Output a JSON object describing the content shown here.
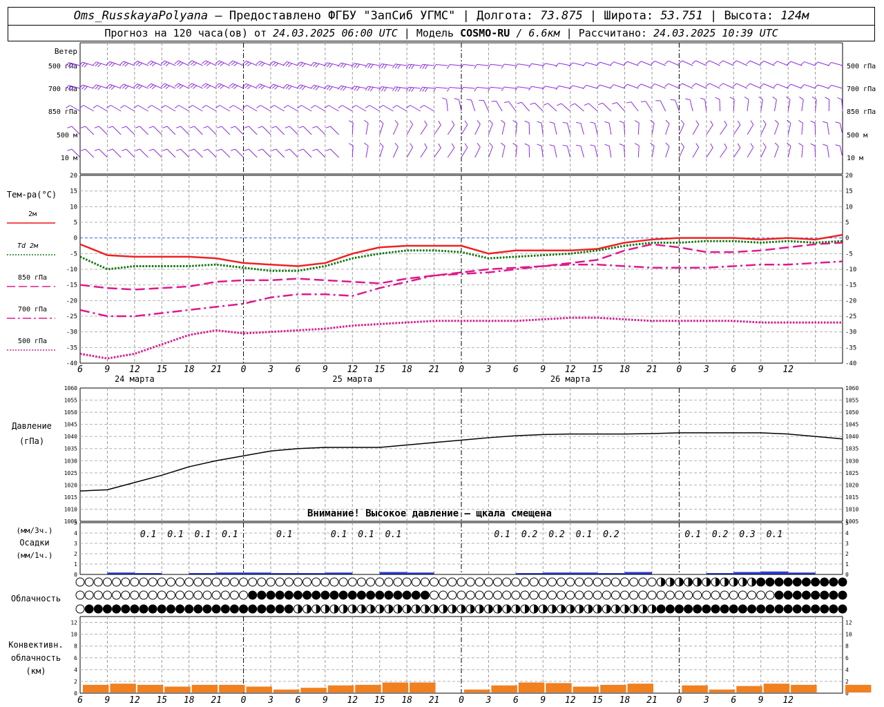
{
  "header": {
    "station": "Oms_RusskayaPolyana",
    "provided_label": "– Предоставлено ФГБУ \"ЗапСиб УГМС\"",
    "lon_label": "Долгота:",
    "lon_value": "73.875",
    "lat_label": "Широта:",
    "lat_value": "53.751",
    "alt_label": "Высота:",
    "alt_value": "124м",
    "forecast_label": "Прогноз на 120 часа(ов) от",
    "forecast_start": "24.03.2025 06:00 UTC",
    "model_label": "Модель",
    "model_name": "COSMO-RU",
    "model_res": "/ 6.6км",
    "calc_label": "Рассчитано:",
    "calc_time": "24.03.2025 10:39 UTC"
  },
  "time_axis": {
    "hour_labels": [
      "6",
      "9",
      "12",
      "15",
      "18",
      "21",
      "0",
      "3",
      "6",
      "9",
      "12",
      "15",
      "18",
      "21",
      "0",
      "3",
      "6",
      "9",
      "12",
      "15",
      "18",
      "21",
      "0",
      "3",
      "6",
      "9",
      "12"
    ],
    "day_labels": [
      "24 марта",
      "25 марта",
      "26 марта"
    ]
  },
  "wind": {
    "title": "Ветер",
    "levels": [
      "500 гПа",
      "700 гПа",
      "850 гПа",
      "500 м",
      "10  м"
    ],
    "color": "#8a2be2"
  },
  "temperature": {
    "title": "Тем-ра(°С)",
    "ticks": [
      "20",
      "15",
      "10",
      "5",
      "0",
      "-5",
      "-10",
      "-15",
      "-20",
      "-25",
      "-30",
      "-35",
      "-40"
    ],
    "legend": [
      {
        "label": "2м",
        "color": "#ee1111",
        "style": "solid"
      },
      {
        "label": "Td 2м",
        "color": "#117711",
        "style": "dotted"
      },
      {
        "label": "850 гПа",
        "color": "#e0188c",
        "style": "dashed"
      },
      {
        "label": "700 гПа",
        "color": "#e0188c",
        "style": "dashdot"
      },
      {
        "label": "500 гПа",
        "color": "#e0188c",
        "style": "dotted"
      }
    ]
  },
  "pressure": {
    "title": "Давление",
    "unit": "(гПа)",
    "ticks": [
      "1060",
      "1055",
      "1050",
      "1045",
      "1040",
      "1035",
      "1030",
      "1025",
      "1020",
      "1015",
      "1010",
      "1005"
    ],
    "warning": "Внимание! Высокое давление – щкала смещена"
  },
  "precip": {
    "label_3h": "(мм/3ч.)",
    "title": "Осадки",
    "label_1h": "(мм/1ч.)",
    "ticks": [
      "5",
      "4",
      "3",
      "2",
      "1",
      "0"
    ],
    "amounts": [
      {
        "h": 9,
        "v": "0.1"
      },
      {
        "h": 12,
        "v": "0.1"
      },
      {
        "h": 15,
        "v": "0.1"
      },
      {
        "h": 18,
        "v": "0.1"
      },
      {
        "h": 24,
        "v": "0.1"
      },
      {
        "h": 30,
        "v": "0.1"
      },
      {
        "h": 33,
        "v": "0.1"
      },
      {
        "h": 36,
        "v": "0.1"
      },
      {
        "h": 48,
        "v": "0.1"
      },
      {
        "h": 51,
        "v": "0.2"
      },
      {
        "h": 54,
        "v": "0.2"
      },
      {
        "h": 57,
        "v": "0.1"
      },
      {
        "h": 60,
        "v": "0.2"
      },
      {
        "h": 69,
        "v": "0.1"
      },
      {
        "h": 72,
        "v": "0.2"
      },
      {
        "h": 75,
        "v": "0.3"
      },
      {
        "h": 78,
        "v": "0.1"
      }
    ]
  },
  "clouds": {
    "title": "Облачность"
  },
  "convective": {
    "title": [
      "Конвективн.",
      "облачность",
      "(км)"
    ],
    "ticks": [
      "12",
      "10",
      "8",
      "6",
      "4",
      "2",
      "0"
    ],
    "color": "#f08020"
  },
  "chart_data": [
    {
      "type": "line",
      "title": "Тем-ра(°С)",
      "x_hours_from_start": [
        0,
        3,
        6,
        9,
        12,
        15,
        18,
        21,
        24,
        27,
        30,
        33,
        36,
        39,
        42,
        45,
        48,
        51,
        54,
        57,
        60,
        63,
        66,
        69,
        72,
        75,
        78,
        81,
        84
      ],
      "ylim": [
        -40,
        20
      ],
      "series": [
        {
          "name": "2м",
          "values": [
            -2,
            -5.5,
            -6,
            -6,
            -6,
            -6.5,
            -8,
            -8.5,
            -9,
            -8,
            -5,
            -3,
            -2.5,
            -2.5,
            -2.5,
            -5,
            -4,
            -4,
            -4,
            -3.5,
            -1.5,
            -0.5,
            0,
            0,
            0,
            -0.5,
            0,
            -0.5,
            1
          ]
        },
        {
          "name": "Td 2м",
          "values": [
            -6,
            -10,
            -9,
            -9,
            -9,
            -8.5,
            -9.5,
            -10.5,
            -10.5,
            -9,
            -6.5,
            -5,
            -4,
            -4,
            -4.5,
            -6.5,
            -6,
            -5.5,
            -5,
            -4,
            -2.5,
            -1.5,
            -1.5,
            -1,
            -1,
            -1.5,
            -1,
            -1.5,
            -1
          ]
        },
        {
          "name": "850 гПа",
          "values": [
            -15,
            -16,
            -16.5,
            -16,
            -15.5,
            -14,
            -13.5,
            -13.5,
            -13,
            -13.5,
            -14,
            -14.5,
            -13,
            -12,
            -11,
            -10,
            -9.5,
            -9,
            -8,
            -7,
            -4,
            -2,
            -3,
            -4.5,
            -4.5,
            -4,
            -3,
            -2,
            -1.5
          ]
        },
        {
          "name": "700 гПа",
          "values": [
            -23,
            -25,
            -25,
            -24,
            -23,
            -22,
            -21,
            -19,
            -18,
            -18,
            -18.5,
            -16,
            -14,
            -12,
            -11.5,
            -11,
            -10,
            -9,
            -8.5,
            -8.5,
            -9,
            -9.5,
            -9.5,
            -9.5,
            -9,
            -8.5,
            -8.5,
            -8,
            -7.5
          ]
        },
        {
          "name": "500 гПа",
          "values": [
            -37,
            -38.5,
            -37,
            -34,
            -31,
            -29.5,
            -30.5,
            -30,
            -29.5,
            -29,
            -28,
            -27.5,
            -27,
            -26.5,
            -26.5,
            -26.5,
            -26.5,
            -26,
            -25.5,
            -25.5,
            -26,
            -26.5,
            -26.5,
            -26.5,
            -26.5,
            -27,
            -27,
            -27,
            -27
          ]
        }
      ]
    },
    {
      "type": "line",
      "title": "Давление",
      "ylabel": "(гПа)",
      "x_hours_from_start": [
        0,
        3,
        6,
        9,
        12,
        15,
        18,
        21,
        24,
        27,
        30,
        33,
        36,
        39,
        42,
        45,
        48,
        51,
        54,
        57,
        60,
        63,
        66,
        69,
        72,
        75,
        78,
        81,
        84
      ],
      "ylim": [
        1005,
        1060
      ],
      "series": [
        {
          "values": [
            1017.5,
            1018,
            1021,
            1024,
            1027.5,
            1030,
            1032,
            1034,
            1035,
            1035.5,
            1035.5,
            1035.5,
            1036.5,
            1037.5,
            1038.5,
            1039.5,
            1040.3,
            1040.8,
            1041,
            1041,
            1041,
            1041.2,
            1041.5,
            1041.5,
            1041.5,
            1041.5,
            1041,
            1040,
            1039
          ]
        }
      ]
    },
    {
      "type": "bar",
      "title": "Осадки",
      "ylabel": "(мм/1ч.)",
      "x_hours_from_start": [
        3,
        6,
        12,
        15,
        18,
        21,
        24,
        27,
        33,
        36,
        48,
        51,
        54,
        57,
        60,
        69,
        72,
        75,
        78
      ],
      "values": [
        0.15,
        0.1,
        0.1,
        0.15,
        0.15,
        0.1,
        0.1,
        0.15,
        0.2,
        0.15,
        0.1,
        0.15,
        0.15,
        0.1,
        0.2,
        0.1,
        0.2,
        0.25,
        0.15
      ],
      "ylim": [
        0,
        5
      ]
    },
    {
      "type": "bar",
      "title": "Конвективн. облачность",
      "ylabel": "(км)",
      "x_hours_from_start": [
        0,
        3,
        6,
        9,
        12,
        15,
        18,
        21,
        24,
        27,
        30,
        33,
        36,
        39,
        42,
        45,
        48,
        51,
        54,
        57,
        60,
        63,
        66,
        69,
        72,
        75,
        78,
        81,
        84
      ],
      "values": [
        1.3,
        1.5,
        1.3,
        1.0,
        1.3,
        1.3,
        1.0,
        0.5,
        0.8,
        1.2,
        1.3,
        1.7,
        1.7,
        0,
        0.5,
        1.2,
        1.7,
        1.6,
        1.0,
        1.3,
        1.5,
        0,
        1.2,
        0.5,
        1.1,
        1.5,
        1.3,
        0,
        1.3
      ],
      "ylim": [
        0,
        13
      ]
    }
  ]
}
